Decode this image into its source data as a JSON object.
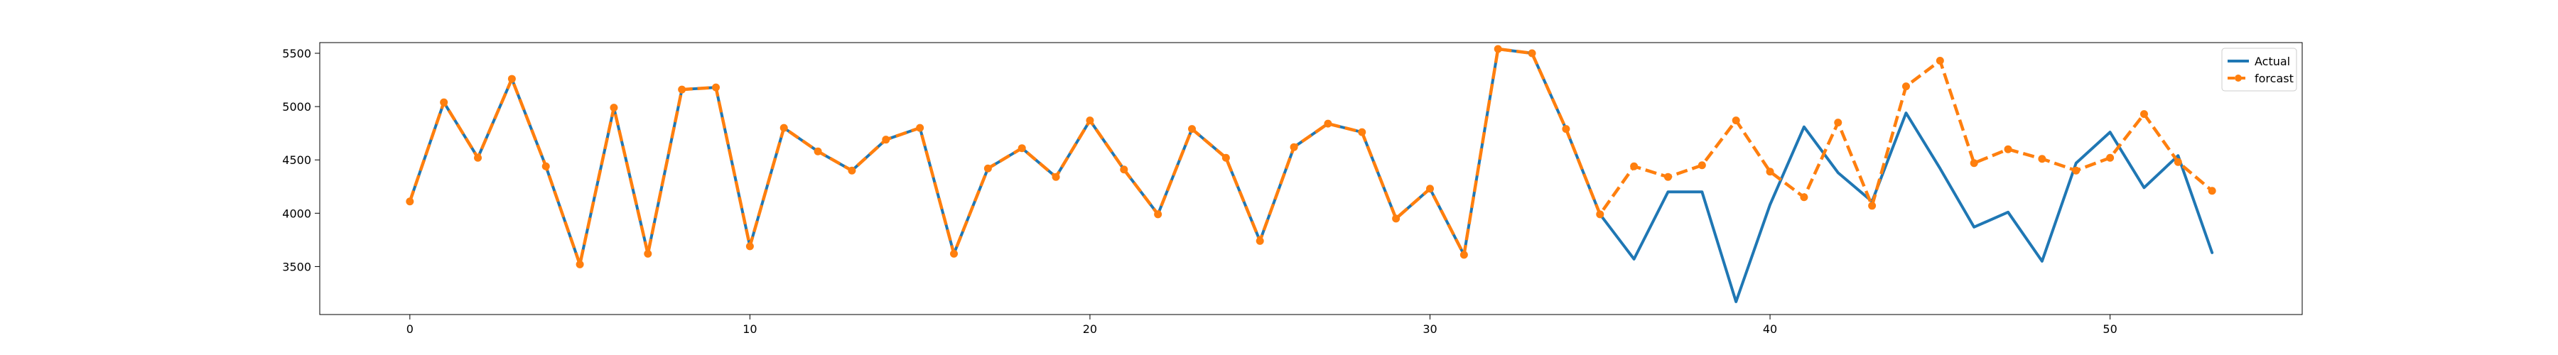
{
  "chart_data": {
    "type": "line",
    "title": "",
    "xlabel": "",
    "ylabel": "",
    "xlim": [
      -2.65,
      55.65
    ],
    "ylim": [
      3050,
      5600
    ],
    "x_ticks": [
      0,
      10,
      20,
      30,
      40,
      50
    ],
    "y_ticks": [
      3500,
      4000,
      4500,
      5000,
      5500
    ],
    "x_tick_labels": [
      "0",
      "10",
      "20",
      "30",
      "40",
      "50"
    ],
    "y_tick_labels": [
      "3500",
      "4000",
      "4500",
      "5000",
      "5500"
    ],
    "grid": false,
    "legend_position": "top-right",
    "series": [
      {
        "name": "Actual",
        "color": "#1f77b4",
        "style": "solid",
        "marker": "none",
        "x": [
          0,
          1,
          2,
          3,
          4,
          5,
          6,
          7,
          8,
          9,
          10,
          11,
          12,
          13,
          14,
          15,
          16,
          17,
          18,
          19,
          20,
          21,
          22,
          23,
          24,
          25,
          26,
          27,
          28,
          29,
          30,
          31,
          32,
          33,
          34,
          35,
          36,
          37,
          38,
          39,
          40,
          41,
          42,
          43,
          44,
          45,
          46,
          47,
          48,
          49,
          50,
          51,
          52,
          53
        ],
        "values": [
          4110,
          5040,
          4520,
          5260,
          4440,
          3520,
          4990,
          3620,
          5160,
          5180,
          3690,
          4800,
          4580,
          4400,
          4690,
          4800,
          3620,
          4420,
          4610,
          4340,
          4870,
          4410,
          3990,
          4790,
          4520,
          3740,
          4620,
          4840,
          4760,
          3950,
          4230,
          3610,
          5540,
          5500,
          4790,
          3990,
          3570,
          4200,
          4200,
          3170,
          4080,
          4810,
          4380,
          4110,
          4940,
          4420,
          3870,
          4010,
          3550,
          4470,
          4760,
          4240,
          4540,
          3630
        ]
      },
      {
        "name": "forcast",
        "color": "#ff7f0e",
        "style": "dashed",
        "marker": "circle",
        "x": [
          0,
          1,
          2,
          3,
          4,
          5,
          6,
          7,
          8,
          9,
          10,
          11,
          12,
          13,
          14,
          15,
          16,
          17,
          18,
          19,
          20,
          21,
          22,
          23,
          24,
          25,
          26,
          27,
          28,
          29,
          30,
          31,
          32,
          33,
          34,
          35,
          36,
          37,
          38,
          39,
          40,
          41,
          42,
          43,
          44,
          45,
          46,
          47,
          48,
          49,
          50,
          51,
          52,
          53
        ],
        "values": [
          4110,
          5040,
          4520,
          5260,
          4440,
          3520,
          4990,
          3620,
          5160,
          5180,
          3690,
          4800,
          4580,
          4400,
          4690,
          4800,
          3620,
          4420,
          4610,
          4340,
          4870,
          4410,
          3990,
          4790,
          4520,
          3740,
          4620,
          4840,
          4760,
          3950,
          4230,
          3610,
          5540,
          5500,
          4790,
          3990,
          4440,
          4340,
          4450,
          4870,
          4390,
          4150,
          4850,
          4070,
          5190,
          5430,
          4470,
          4600,
          4510,
          4400,
          4520,
          4930,
          4480,
          4210
        ]
      }
    ]
  }
}
